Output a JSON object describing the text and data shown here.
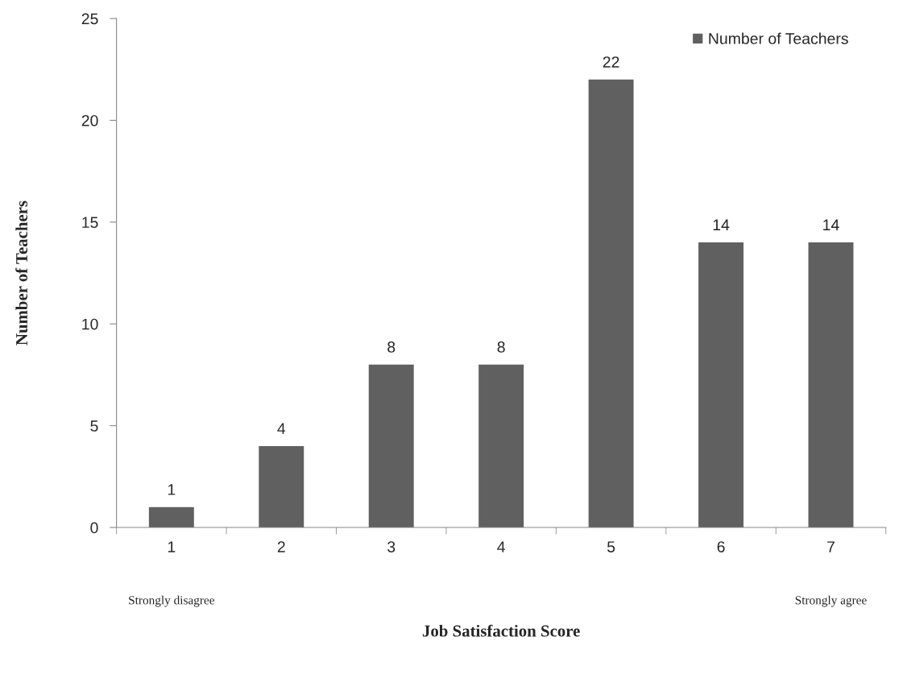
{
  "chart_data": {
    "type": "bar",
    "xlabel": "Job Satisfaction Score",
    "ylabel": "Number of Teachers",
    "categories": [
      "1",
      "2",
      "3",
      "4",
      "5",
      "6",
      "7"
    ],
    "series": [
      {
        "name": "Number of Teachers",
        "color": "#606060",
        "values": [
          1,
          4,
          8,
          8,
          22,
          14,
          14
        ]
      }
    ],
    "ylim": [
      0,
      25
    ],
    "yticks": [
      0,
      5,
      10,
      15,
      20,
      25
    ],
    "data_labels": true,
    "legend": "top right",
    "grid": false,
    "annotations": [
      "Strongly disagree",
      "Strongly agree"
    ]
  }
}
